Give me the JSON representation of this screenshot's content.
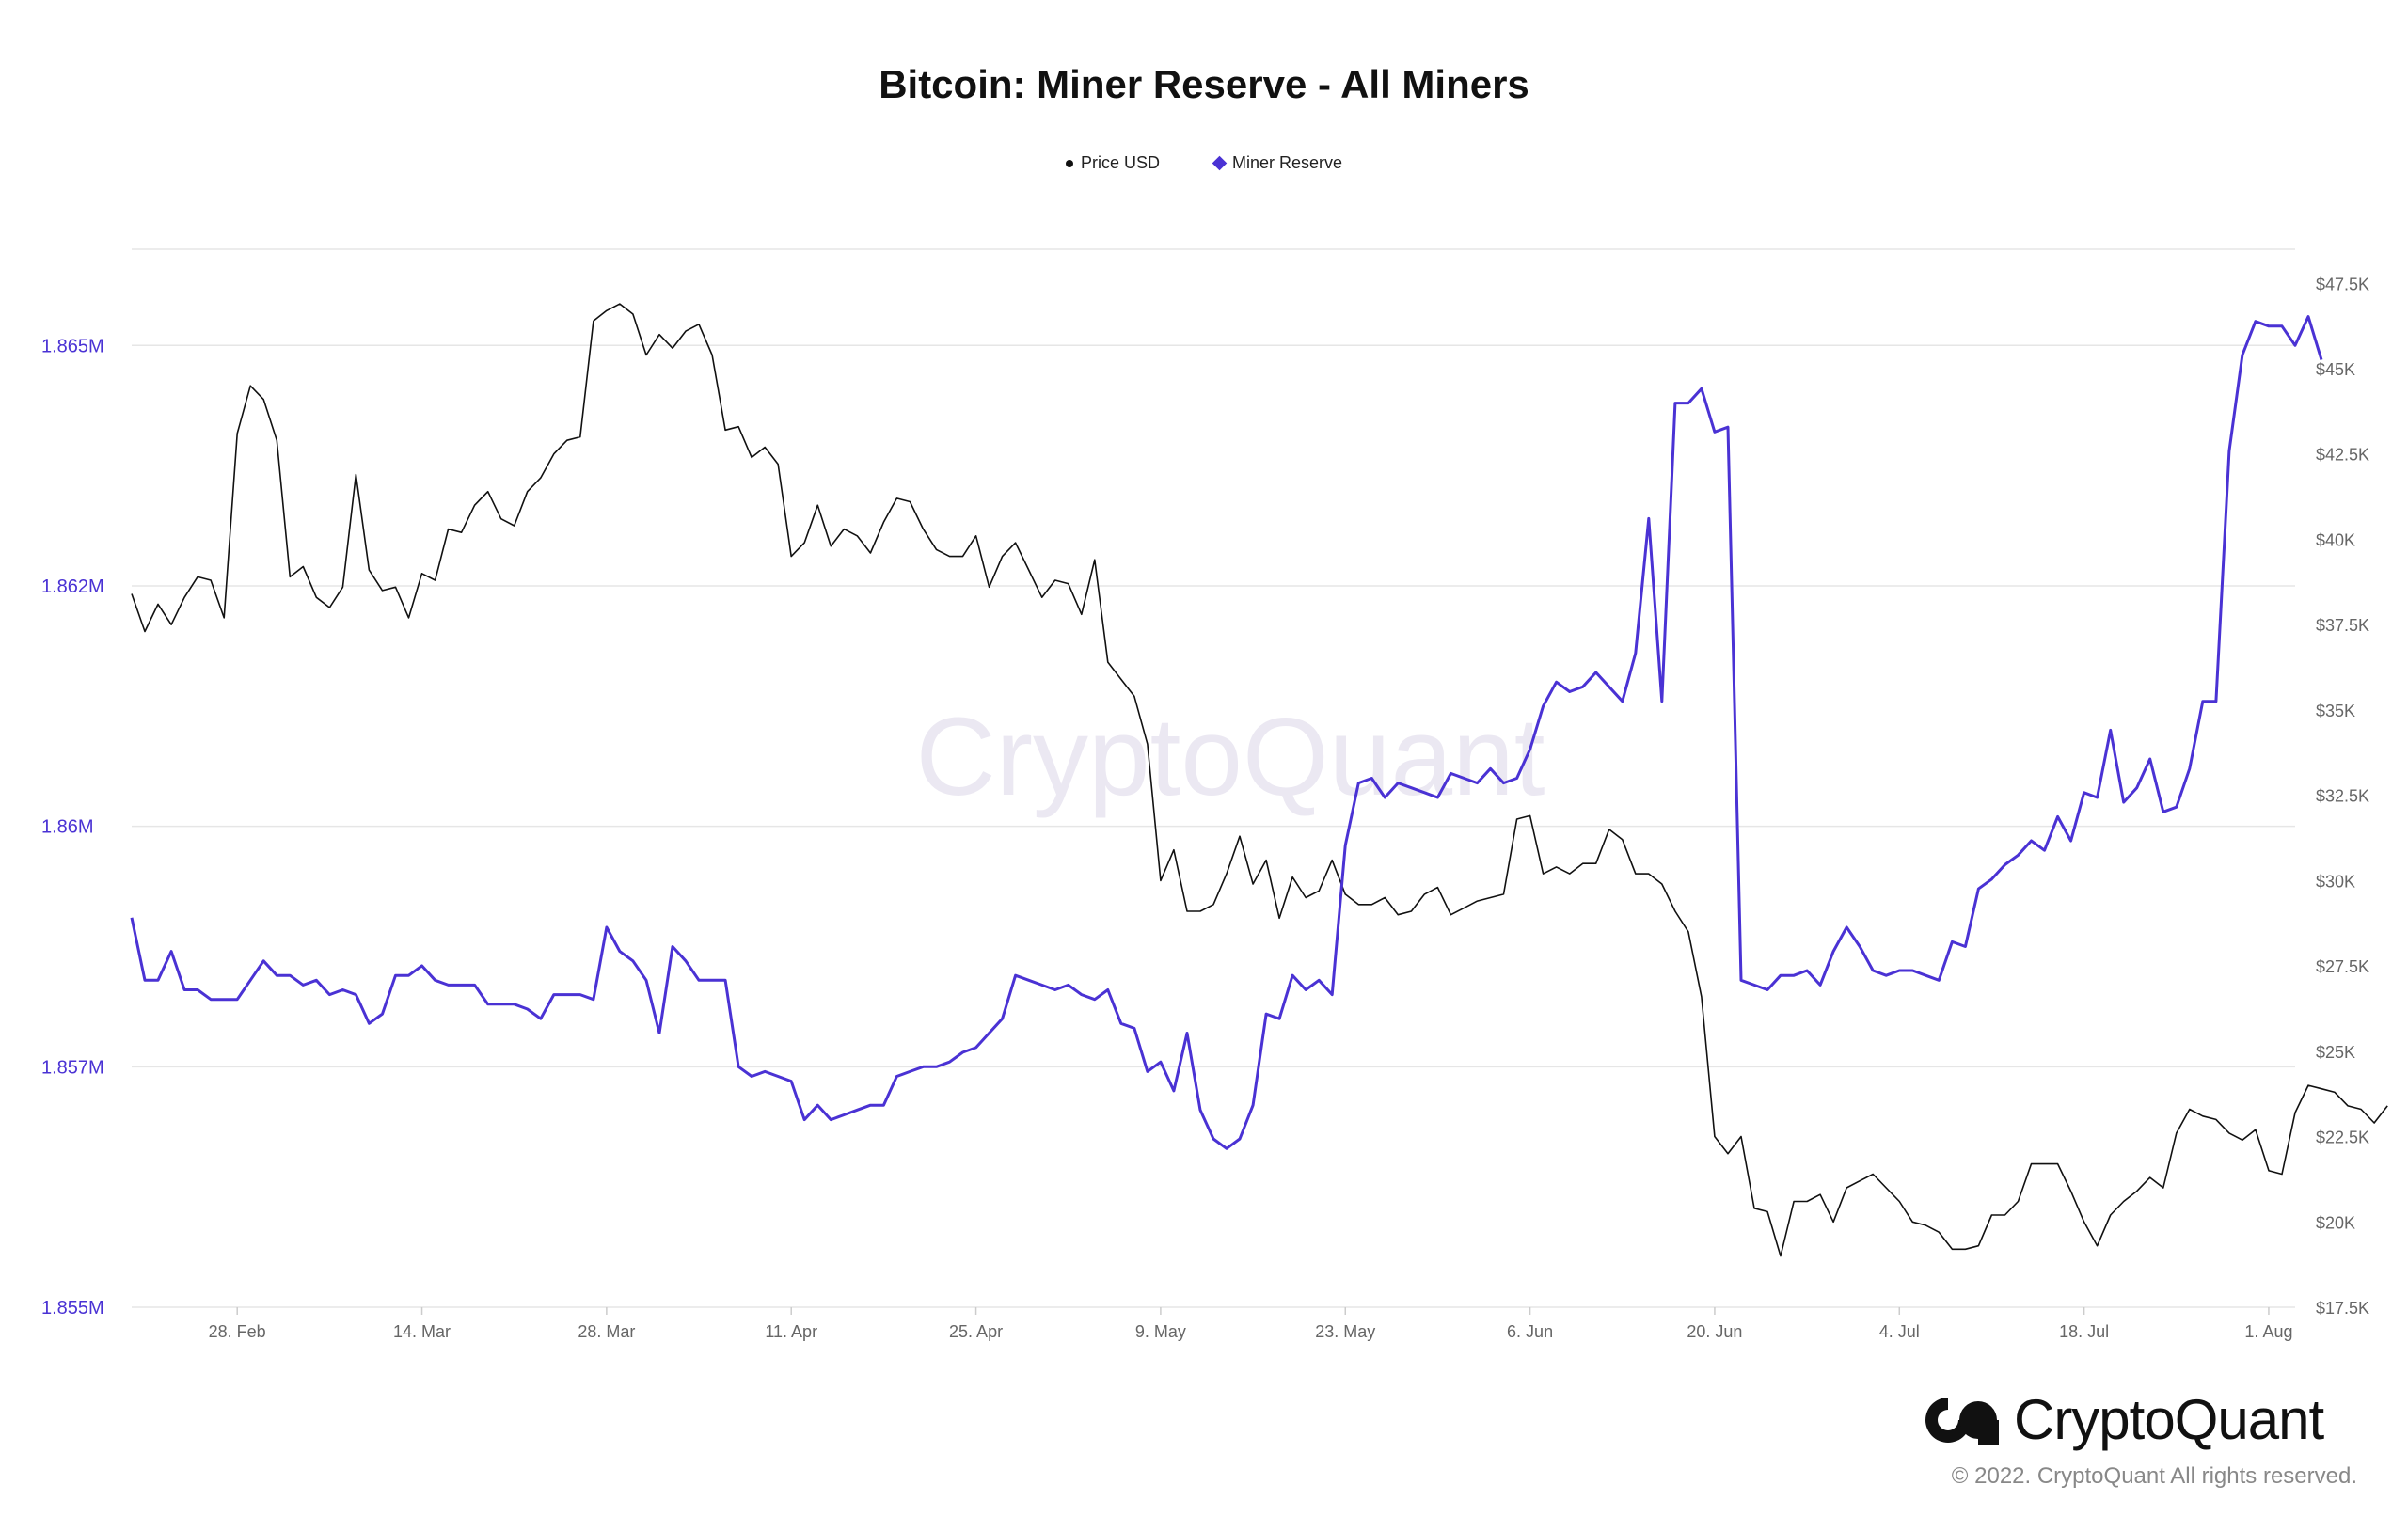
{
  "title": "Bitcoin: Miner Reserve - All Miners",
  "colors": {
    "price": "#111111",
    "reserve": "#4a32d4",
    "grid": "#e6e6e6",
    "left_axis": "#4a32d4",
    "right_axis": "#666666",
    "watermark": "#ebe8f2"
  },
  "watermark": "CryptoQuant",
  "logo": {
    "text": "CryptoQuant"
  },
  "copyright": "© 2022. CryptoQuant All rights reserved.",
  "chart_data": {
    "type": "line",
    "title": "Bitcoin: Miner Reserve - All Miners",
    "legend": [
      "Price USD",
      "Miner Reserve"
    ],
    "legend_position": "top-center",
    "x_tick_labels": [
      "28. Feb",
      "14. Mar",
      "28. Mar",
      "11. Apr",
      "25. Apr",
      "9. May",
      "23. May",
      "6. Jun",
      "20. Jun",
      "4. Jul",
      "18. Jul",
      "1. Aug"
    ],
    "x_tick_day_index": [
      14,
      28,
      42,
      56,
      70,
      84,
      98,
      112,
      126,
      140,
      154,
      168
    ],
    "x_range_days": [
      6,
      170
    ],
    "left_axis": {
      "label": "Miner Reserve",
      "ticks": [
        "1.855M",
        "1.857M",
        "1.86M",
        "1.862M",
        "1.865M"
      ],
      "tick_values": [
        1855000,
        1857500,
        1860000,
        1862500,
        1865000
      ],
      "ylim": [
        1855000,
        1866000
      ]
    },
    "right_axis": {
      "label": "Price USD",
      "ticks": [
        "$17.5K",
        "$20K",
        "$22.5K",
        "$25K",
        "$27.5K",
        "$30K",
        "$32.5K",
        "$35K",
        "$37.5K",
        "$40K",
        "$42.5K",
        "$45K",
        "$47.5K"
      ],
      "tick_values": [
        17500,
        20000,
        22500,
        25000,
        27500,
        30000,
        32500,
        35000,
        37500,
        40000,
        42500,
        45000,
        47500
      ],
      "ylim": [
        17500,
        48500
      ]
    },
    "series": [
      {
        "name": "Price USD",
        "axis": "right",
        "start_day": 6,
        "values": [
          38400,
          37300,
          38100,
          37500,
          38300,
          38900,
          38800,
          37700,
          43100,
          44500,
          44100,
          42900,
          38900,
          39200,
          38300,
          38000,
          38600,
          41900,
          39100,
          38500,
          38600,
          37700,
          39000,
          38800,
          40300,
          40200,
          41000,
          41400,
          40600,
          40400,
          41400,
          41800,
          42500,
          42900,
          43000,
          46400,
          46700,
          46900,
          46600,
          45400,
          46000,
          45600,
          46100,
          46300,
          45400,
          43200,
          43300,
          42400,
          42700,
          42200,
          39500,
          39900,
          41000,
          39800,
          40300,
          40100,
          39600,
          40500,
          41200,
          41100,
          40300,
          39700,
          39500,
          39500,
          40100,
          38600,
          39500,
          39900,
          39100,
          38300,
          38800,
          38700,
          37800,
          39400,
          36400,
          35900,
          35400,
          34000,
          30000,
          30900,
          29100,
          29100,
          29300,
          30200,
          31300,
          29900,
          30600,
          28900,
          30100,
          29500,
          29700,
          30600,
          29600,
          29300,
          29300,
          29500,
          29000,
          29100,
          29600,
          29800,
          29000,
          29200,
          29400,
          29500,
          29600,
          31800,
          31900,
          30200,
          30400,
          30200,
          30500,
          30500,
          31500,
          31200,
          30200,
          30200,
          29900,
          29100,
          28500,
          26600,
          22500,
          22000,
          22500,
          20400,
          20300,
          19000,
          20600,
          20600,
          20800,
          20000,
          21000,
          21200,
          21400,
          21000,
          20600,
          20000,
          19900,
          19700,
          19200,
          19200,
          19300,
          20200,
          20200,
          20600,
          21700,
          21700,
          21700,
          20900,
          20000,
          19300,
          20200,
          20600,
          20900,
          21300,
          21000,
          22600,
          23300,
          23100,
          23000,
          22600,
          22400,
          22700,
          21500,
          21400,
          23200,
          24000,
          23900,
          23800,
          23400,
          23300,
          22900,
          23400
        ]
      },
      {
        "name": "Miner Reserve",
        "axis": "left",
        "start_day": 6,
        "values": [
          1859050,
          1858400,
          1858400,
          1858700,
          1858300,
          1858300,
          1858200,
          1858200,
          1858200,
          1858400,
          1858600,
          1858450,
          1858450,
          1858350,
          1858400,
          1858250,
          1858300,
          1858250,
          1857950,
          1858050,
          1858450,
          1858450,
          1858550,
          1858400,
          1858350,
          1858350,
          1858350,
          1858150,
          1858150,
          1858150,
          1858100,
          1858000,
          1858250,
          1858250,
          1858250,
          1858200,
          1858950,
          1858700,
          1858600,
          1858400,
          1857850,
          1858750,
          1858600,
          1858400,
          1858400,
          1858400,
          1857500,
          1857400,
          1857450,
          1857400,
          1857350,
          1856950,
          1857100,
          1856950,
          1857000,
          1857050,
          1857100,
          1857100,
          1857400,
          1857450,
          1857500,
          1857500,
          1857550,
          1857650,
          1857700,
          1857850,
          1858000,
          1858450,
          1858400,
          1858350,
          1858300,
          1858350,
          1858250,
          1858200,
          1858300,
          1857950,
          1857900,
          1857450,
          1857550,
          1857250,
          1857850,
          1857050,
          1856750,
          1856650,
          1856750,
          1857100,
          1858050,
          1858000,
          1858450,
          1858300,
          1858400,
          1858250,
          1859800,
          1860450,
          1860500,
          1860300,
          1860450,
          1860400,
          1860350,
          1860300,
          1860550,
          1860500,
          1860450,
          1860600,
          1860450,
          1860500,
          1860800,
          1861250,
          1861500,
          1861400,
          1861450,
          1861600,
          1861450,
          1861300,
          1861800,
          1863200,
          1861300,
          1864400,
          1864400,
          1864550,
          1864100,
          1864150,
          1858400,
          1858350,
          1858300,
          1858450,
          1858450,
          1858500,
          1858350,
          1858700,
          1858950,
          1858750,
          1858500,
          1858450,
          1858500,
          1858500,
          1858450,
          1858400,
          1858800,
          1858750,
          1859350,
          1859450,
          1859600,
          1859700,
          1859850,
          1859750,
          1860100,
          1859850,
          1860350,
          1860300,
          1861000,
          1860250,
          1860400,
          1860700,
          1860150,
          1860200,
          1860600,
          1861300,
          1861300,
          1863900,
          1864900,
          1865250,
          1865200,
          1865200,
          1865000,
          1865300,
          1864850
        ]
      }
    ]
  }
}
